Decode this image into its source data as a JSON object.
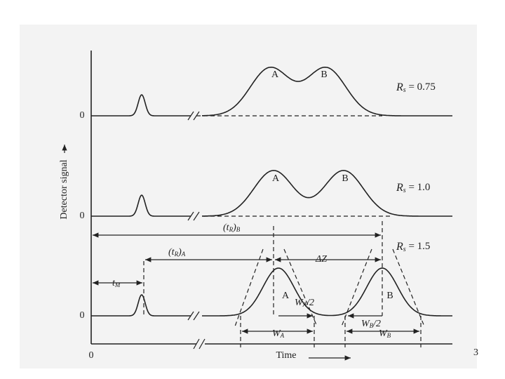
{
  "axes": {
    "y_label": "Detector signal",
    "x_label": "Time",
    "origin": "0"
  },
  "traces": [
    {
      "baseline": "0",
      "peaks": [
        "A",
        "B"
      ],
      "resolution": {
        "symbol": "R",
        "sub": "s",
        "rest": " = 0.75"
      }
    },
    {
      "baseline": "0",
      "peaks": [
        "A",
        "B"
      ],
      "resolution": {
        "symbol": "R",
        "sub": "s",
        "rest": " = 1.0"
      }
    },
    {
      "baseline": "0",
      "peaks": [
        "A",
        "B"
      ],
      "resolution": {
        "symbol": "R",
        "sub": "s",
        "rest": " = 1.5"
      }
    }
  ],
  "annotations": {
    "t_m": {
      "main": "t",
      "sub": "M"
    },
    "t_ra": {
      "open": "(",
      "main": "t",
      "sub1": "R",
      "close": ")",
      "sub2": "A"
    },
    "t_rb": {
      "open": "(",
      "main": "t",
      "sub1": "R",
      "close": ")",
      "sub2": "B"
    },
    "delta_z": "ΔZ",
    "wa_half": {
      "main": "W",
      "sub": "A",
      "rest": "/2"
    },
    "wb_half": {
      "main": "W",
      "sub": "B",
      "rest": "/2"
    },
    "wa": {
      "main": "W",
      "sub": "A"
    },
    "wb": {
      "main": "W",
      "sub": "B"
    }
  },
  "page_number": "3"
}
